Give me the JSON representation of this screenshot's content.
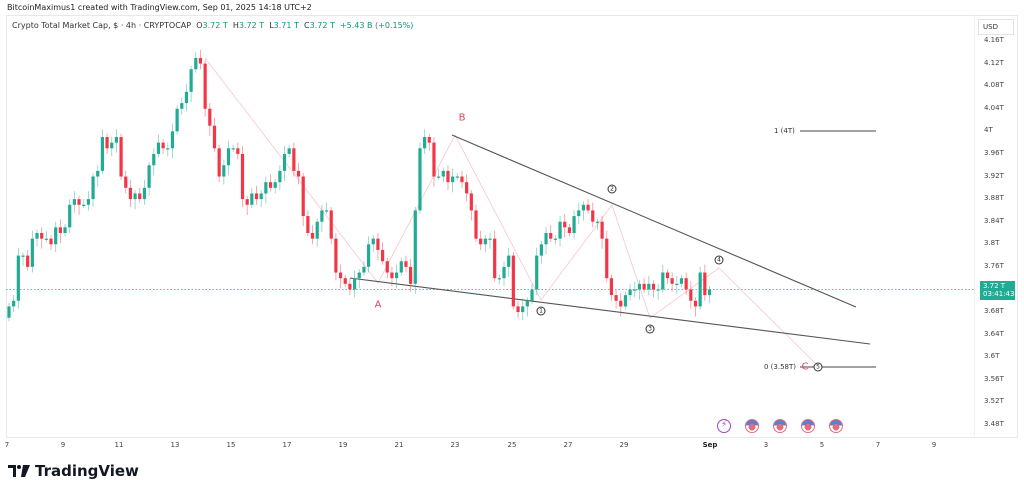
{
  "header": {
    "credit": "BitcoinMaximus1 created with TradingView.com, Sep 01, 2025 14:18 UTC+2",
    "symbol_title": "Crypto Total Market Cap, $ · 4h · CRYPTOCAP",
    "ohlc": {
      "o_label": "O",
      "o": "3.72 T",
      "h_label": "H",
      "h": "3.72 T",
      "l_label": "L",
      "l": "3.71 T",
      "c_label": "C",
      "c": "3.72 T",
      "change": "+5.43 B (+0.15%)"
    }
  },
  "axis": {
    "currency": "USD",
    "price_tag": {
      "value": "3.72 T",
      "countdown": "03:41:43"
    }
  },
  "footer": {
    "brand": "TradingView"
  },
  "colors": {
    "up": "#22ab94",
    "down": "#f23645",
    "trend": "#555555",
    "guide": "#f5c6cb",
    "accent_label": "#e0455b"
  },
  "annotations": {
    "A": "A",
    "B": "B",
    "C": "C",
    "waves": [
      "1",
      "2",
      "3",
      "4",
      "5"
    ],
    "fib_1": "1 (4T)",
    "fib_0": "0 (3.58T)"
  },
  "chart_data": {
    "type": "candlestick",
    "title": "Crypto Total Market Cap, $ · 4h · CRYPTOCAP",
    "xlabel": "",
    "ylabel": "USD",
    "y_ticks": [
      "4.16T",
      "4.12T",
      "4.08T",
      "4.04T",
      "4T",
      "3.96T",
      "3.92T",
      "3.88T",
      "3.84T",
      "3.8T",
      "3.76T",
      "3.72T",
      "3.68T",
      "3.64T",
      "3.6T",
      "3.56T",
      "3.52T",
      "3.48T"
    ],
    "y_tick_values": [
      4.16,
      4.12,
      4.08,
      4.04,
      4.0,
      3.96,
      3.92,
      3.88,
      3.84,
      3.8,
      3.76,
      3.72,
      3.68,
      3.64,
      3.6,
      3.56,
      3.52,
      3.48
    ],
    "x_ticks": [
      "7",
      "9",
      "11",
      "13",
      "15",
      "17",
      "19",
      "21",
      "23",
      "25",
      "27",
      "29",
      "Sep",
      "3",
      "5",
      "7",
      "9"
    ],
    "ylim": [
      3.46,
      4.18
    ],
    "current_price": 3.72,
    "closes": [
      3.69,
      3.7,
      3.78,
      3.78,
      3.76,
      3.81,
      3.82,
      3.81,
      3.81,
      3.8,
      3.83,
      3.82,
      3.83,
      3.87,
      3.88,
      3.87,
      3.87,
      3.88,
      3.92,
      3.93,
      3.99,
      3.97,
      3.98,
      3.99,
      3.92,
      3.9,
      3.88,
      3.89,
      3.88,
      3.9,
      3.94,
      3.96,
      3.98,
      3.97,
      3.97,
      4.0,
      4.04,
      4.05,
      4.07,
      4.11,
      4.13,
      4.12,
      4.04,
      4.01,
      3.97,
      3.92,
      3.94,
      3.97,
      3.97,
      3.96,
      3.88,
      3.87,
      3.89,
      3.88,
      3.89,
      3.91,
      3.9,
      3.91,
      3.93,
      3.96,
      3.97,
      3.93,
      3.92,
      3.85,
      3.82,
      3.81,
      3.84,
      3.86,
      3.86,
      3.81,
      3.75,
      3.74,
      3.73,
      3.72,
      3.74,
      3.75,
      3.76,
      3.8,
      3.81,
      3.79,
      3.77,
      3.75,
      3.74,
      3.75,
      3.77,
      3.76,
      3.73,
      3.86,
      3.97,
      3.99,
      3.98,
      3.92,
      3.92,
      3.93,
      3.91,
      3.92,
      3.92,
      3.91,
      3.89,
      3.86,
      3.81,
      3.8,
      3.81,
      3.81,
      3.74,
      3.74,
      3.76,
      3.78,
      3.69,
      3.68,
      3.69,
      3.7,
      3.72,
      3.78,
      3.8,
      3.82,
      3.81,
      3.81,
      3.84,
      3.83,
      3.82,
      3.85,
      3.86,
      3.87,
      3.86,
      3.84,
      3.84,
      3.81,
      3.74,
      3.71,
      3.7,
      3.69,
      3.71,
      3.72,
      3.72,
      3.73,
      3.72,
      3.73,
      3.72,
      3.72,
      3.75,
      3.74,
      3.73,
      3.73,
      3.74,
      3.72,
      3.7,
      3.69,
      3.75,
      3.71,
      3.72
    ],
    "trendlines": [
      {
        "name": "upper",
        "from": {
          "date": "Aug 23",
          "price": 4.0
        },
        "to": {
          "date": "Sep 6",
          "price": 3.69
        }
      },
      {
        "name": "lower",
        "from": {
          "date": "Aug 19",
          "price": 3.73
        },
        "to": {
          "date": "Sep 6",
          "price": 3.62
        }
      }
    ],
    "levels": [
      {
        "label": "1 (4T)",
        "price": 4.0
      },
      {
        "label": "0 (3.58T)",
        "price": 3.58
      }
    ],
    "wave_labels": [
      {
        "label": "A",
        "date": "Aug 20",
        "price": 3.68
      },
      {
        "label": "B",
        "date": "Aug 23",
        "price": 4.02
      },
      {
        "label": "1",
        "date": "Aug 26",
        "price": 3.69
      },
      {
        "label": "2",
        "date": "Aug 28",
        "price": 3.9
      },
      {
        "label": "3",
        "date": "Aug 30",
        "price": 3.65
      },
      {
        "label": "4",
        "date": "Sep 1",
        "price": 3.77
      },
      {
        "label": "C",
        "date": "Sep 4",
        "price": 3.58
      },
      {
        "label": "5",
        "date": "Sep 4",
        "price": 3.58
      }
    ]
  }
}
